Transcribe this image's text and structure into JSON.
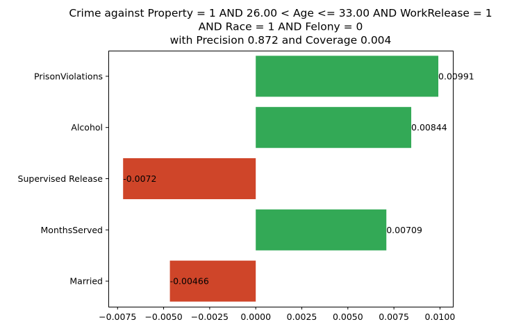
{
  "chart_data": {
    "type": "bar",
    "orientation": "horizontal",
    "title_lines": [
      "Crime against Property = 1 AND 26.00 < Age <= 33.00 AND WorkRelease = 1",
      "AND Race = 1 AND Felony = 0",
      "with Precision 0.872 and Coverage 0.004"
    ],
    "categories": [
      "PrisonViolations",
      "Alcohol",
      "Supervised Release",
      "MonthsServed",
      "Married"
    ],
    "values": [
      0.00991,
      0.00844,
      -0.0072,
      0.00709,
      -0.00466
    ],
    "value_labels": [
      "0.00991",
      "0.00844",
      "-0.0072",
      "0.00709",
      "-0.00466"
    ],
    "xlim": [
      -0.008,
      0.0107
    ],
    "xticks": [
      -0.0075,
      -0.005,
      -0.0025,
      0.0,
      0.0025,
      0.005,
      0.0075,
      0.01
    ],
    "xtick_labels": [
      "−0.0075",
      "−0.0050",
      "−0.0025",
      "0.0000",
      "0.0025",
      "0.0050",
      "0.0075",
      "0.0100"
    ],
    "colors": {
      "positive": "#33a956",
      "negative": "#cf4529"
    },
    "grid": false,
    "legend": "none",
    "xlabel": "",
    "ylabel": ""
  }
}
